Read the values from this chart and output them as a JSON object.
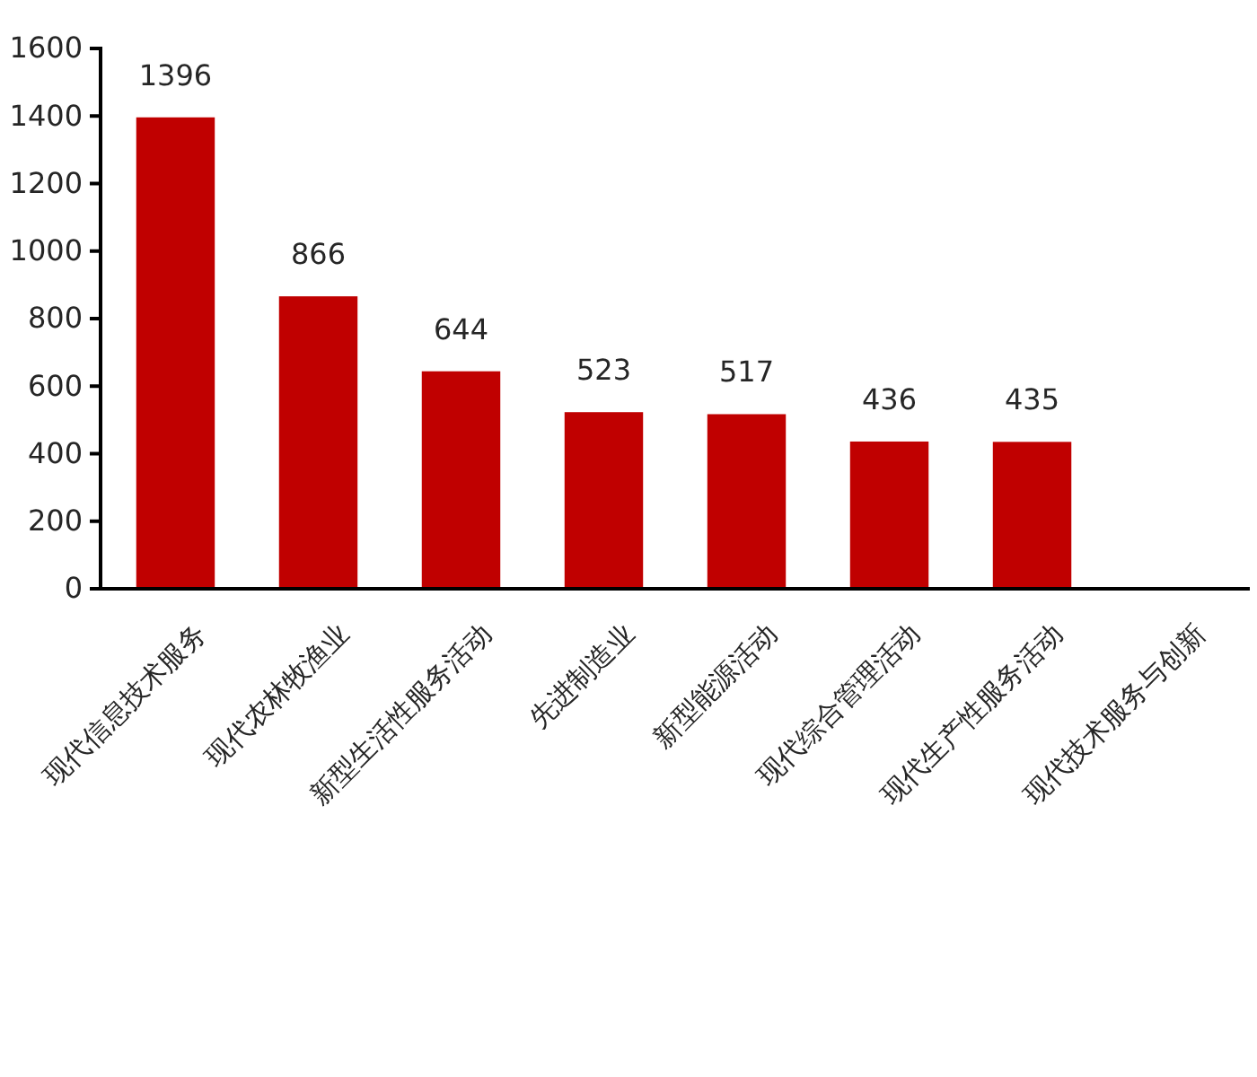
{
  "chart_data": {
    "type": "bar",
    "categories": [
      "现代信息技术服务",
      "现代农林牧渔业",
      "新型生活性服务活动",
      "先进制造业",
      "新型能源活动",
      "现代综合管理活动",
      "现代生产性服务活动",
      "现代技术服务与创新"
    ],
    "values": [
      1396,
      866,
      644,
      523,
      517,
      436,
      435,
      null
    ],
    "color": "#c00000",
    "ylim": [
      0,
      1600
    ],
    "yticks": [
      0,
      200,
      400,
      600,
      800,
      1000,
      1200,
      1400,
      1600
    ],
    "data_labels": true
  }
}
